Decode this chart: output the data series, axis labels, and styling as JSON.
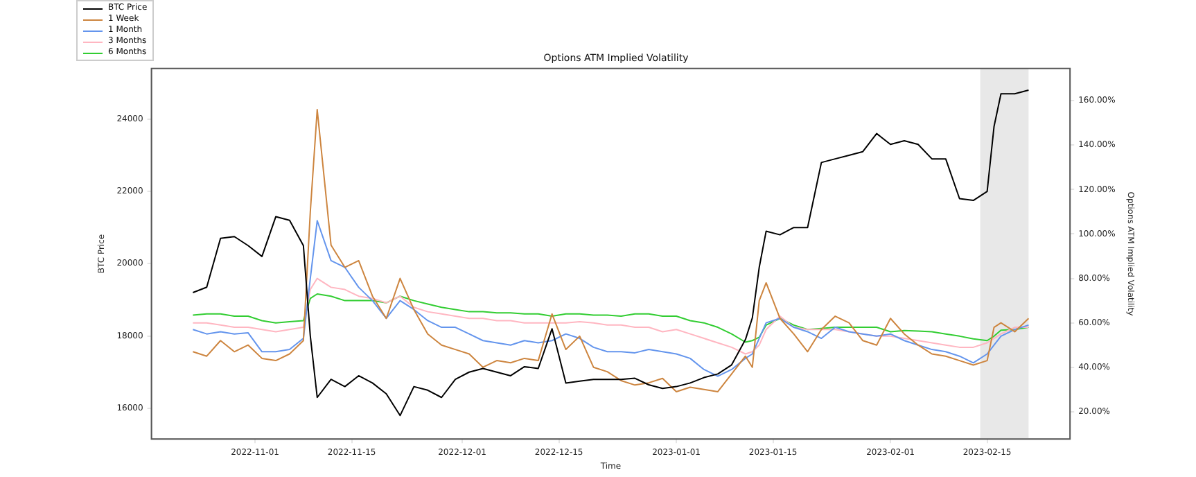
{
  "chart_data": {
    "type": "line",
    "title": "Options ATM Implied Volatility",
    "xlabel": "Time",
    "ylabel": "BTC Price",
    "y2label": "Options ATM Implied Volatility",
    "x": [
      "2022-10-23",
      "2022-10-25",
      "2022-10-27",
      "2022-10-29",
      "2022-10-31",
      "2022-11-02",
      "2022-11-04",
      "2022-11-06",
      "2022-11-08",
      "2022-11-09",
      "2022-11-10",
      "2022-11-12",
      "2022-11-14",
      "2022-11-16",
      "2022-11-18",
      "2022-11-20",
      "2022-11-22",
      "2022-11-24",
      "2022-11-26",
      "2022-11-28",
      "2022-11-30",
      "2022-12-02",
      "2022-12-04",
      "2022-12-06",
      "2022-12-08",
      "2022-12-10",
      "2022-12-12",
      "2022-12-14",
      "2022-12-16",
      "2022-12-18",
      "2022-12-20",
      "2022-12-22",
      "2022-12-24",
      "2022-12-26",
      "2022-12-28",
      "2022-12-30",
      "2023-01-01",
      "2023-01-03",
      "2023-01-05",
      "2023-01-07",
      "2023-01-09",
      "2023-01-11",
      "2023-01-12",
      "2023-01-13",
      "2023-01-14",
      "2023-01-16",
      "2023-01-18",
      "2023-01-20",
      "2023-01-22",
      "2023-01-24",
      "2023-01-26",
      "2023-01-28",
      "2023-01-30",
      "2023-02-01",
      "2023-02-03",
      "2023-02-05",
      "2023-02-07",
      "2023-02-09",
      "2023-02-11",
      "2023-02-13",
      "2023-02-15",
      "2023-02-16",
      "2023-02-17",
      "2023-02-19",
      "2023-02-21"
    ],
    "series": [
      {
        "name": "BTC Price",
        "color": "#000000",
        "values": [
          19200,
          19350,
          20700,
          20750,
          20500,
          20200,
          21300,
          21200,
          20500,
          18000,
          16300,
          16800,
          16600,
          16900,
          16700,
          16400,
          15800,
          16600,
          16500,
          16300,
          16800,
          17000,
          17100,
          17000,
          16900,
          17150,
          17100,
          18200,
          16700,
          16750,
          16800,
          16800,
          16800,
          16830,
          16650,
          16550,
          16600,
          16700,
          16850,
          16950,
          17200,
          17900,
          18500,
          19900,
          20900,
          20800,
          21000,
          21000,
          22800,
          22900,
          23000,
          23100,
          23600,
          23300,
          23400,
          23300,
          22900,
          22900,
          21800,
          21750,
          22000,
          23800,
          24700,
          24700,
          24800
        ]
      },
      {
        "name": "1 Week",
        "color": "#cd853f",
        "axis": "y2",
        "values": [
          47,
          45,
          52,
          47,
          50,
          44,
          43,
          46,
          52,
          110,
          156,
          95,
          85,
          88,
          72,
          62,
          80,
          66,
          55,
          50,
          48,
          46,
          40,
          43,
          42,
          44,
          43,
          64,
          48,
          54,
          40,
          38,
          34,
          32,
          33,
          35,
          29,
          31,
          30,
          29,
          37,
          45,
          40,
          70,
          78,
          62,
          55,
          47,
          57,
          63,
          60,
          52,
          50,
          62,
          55,
          50,
          46,
          45,
          43,
          41,
          43,
          58,
          60,
          56,
          62
        ]
      },
      {
        "name": "1 Month",
        "color": "#6495ed",
        "axis": "y2",
        "values": [
          57,
          55,
          56,
          55,
          55.5,
          47,
          47,
          48,
          53,
          80,
          106,
          88,
          85,
          76,
          70,
          62,
          70,
          66,
          61,
          58,
          58,
          55,
          52,
          51,
          50,
          52,
          51,
          52,
          55,
          53,
          49,
          47,
          47,
          46.5,
          48,
          47,
          46,
          44,
          39,
          36,
          39,
          44,
          46,
          53,
          60,
          62,
          58,
          56,
          53,
          58,
          56,
          55,
          54,
          55,
          52,
          50,
          48,
          47,
          45,
          42,
          46,
          50,
          54,
          57,
          59
        ]
      },
      {
        "name": "3 Months",
        "color": "#ffb6c1",
        "axis": "y2",
        "values": [
          60,
          60,
          59,
          58,
          58,
          57,
          56,
          57,
          58,
          75,
          80,
          76,
          75,
          72,
          71,
          69,
          72,
          67,
          65,
          64,
          63,
          62,
          62,
          61,
          61,
          60,
          60,
          60,
          60,
          60.5,
          60,
          59,
          59,
          58,
          58,
          56,
          57,
          55,
          53,
          51,
          49,
          46,
          47,
          50,
          57,
          63,
          58,
          57,
          57,
          57,
          56,
          55,
          54,
          54,
          53,
          52,
          51,
          50,
          49,
          49,
          51,
          53,
          55,
          58,
          58
        ]
      },
      {
        "name": "6 Months",
        "color": "#32cd32",
        "axis": "y2",
        "values": [
          63.5,
          64,
          64,
          63,
          63,
          61,
          60,
          60.5,
          61,
          71,
          73,
          72,
          70,
          70,
          70,
          69,
          72,
          70,
          68.5,
          67,
          66,
          65,
          65,
          64.5,
          64.5,
          64,
          64,
          63,
          64,
          64,
          63.5,
          63.5,
          63,
          64,
          64,
          63,
          63,
          61,
          60,
          58,
          55,
          51.3,
          52,
          53.5,
          59,
          62,
          59,
          57,
          57.5,
          58,
          58,
          58,
          58,
          56,
          56.5,
          56.3,
          56,
          55,
          54,
          52.8,
          52,
          54,
          56.7,
          57,
          58
        ]
      }
    ],
    "xlim": [
      "2022-10-17",
      "2023-02-27"
    ],
    "xticks": [
      {
        "value": "2022-11-01",
        "label": "2022-11-01"
      },
      {
        "value": "2022-11-15",
        "label": "2022-11-15"
      },
      {
        "value": "2022-12-01",
        "label": "2022-12-01"
      },
      {
        "value": "2022-12-15",
        "label": "2022-12-15"
      },
      {
        "value": "2023-01-01",
        "label": "2023-01-01"
      },
      {
        "value": "2023-01-15",
        "label": "2023-01-15"
      },
      {
        "value": "2023-02-01",
        "label": "2023-02-01"
      },
      {
        "value": "2023-02-15",
        "label": "2023-02-15"
      }
    ],
    "ylim": [
      15150,
      25400
    ],
    "yticks": [
      16000,
      18000,
      20000,
      22000,
      24000
    ],
    "y2lim": [
      7.7,
      174.5
    ],
    "y2ticks": [
      {
        "value": 20,
        "label": "20.00%"
      },
      {
        "value": 40,
        "label": "40.00%"
      },
      {
        "value": 60,
        "label": "60.00%"
      },
      {
        "value": 80,
        "label": "80.00%"
      },
      {
        "value": 100,
        "label": "100.00%"
      },
      {
        "value": 120,
        "label": "120.00%"
      },
      {
        "value": 140,
        "label": "140.00%"
      },
      {
        "value": 160,
        "label": "160.00%"
      }
    ],
    "bands": [
      {
        "axis": "x",
        "from": "2023-02-14",
        "to": "2023-02-21",
        "color": "#e8e8e8"
      }
    ],
    "legend": "top left",
    "grid": false,
    "line_style": "solid",
    "marker": "none"
  }
}
